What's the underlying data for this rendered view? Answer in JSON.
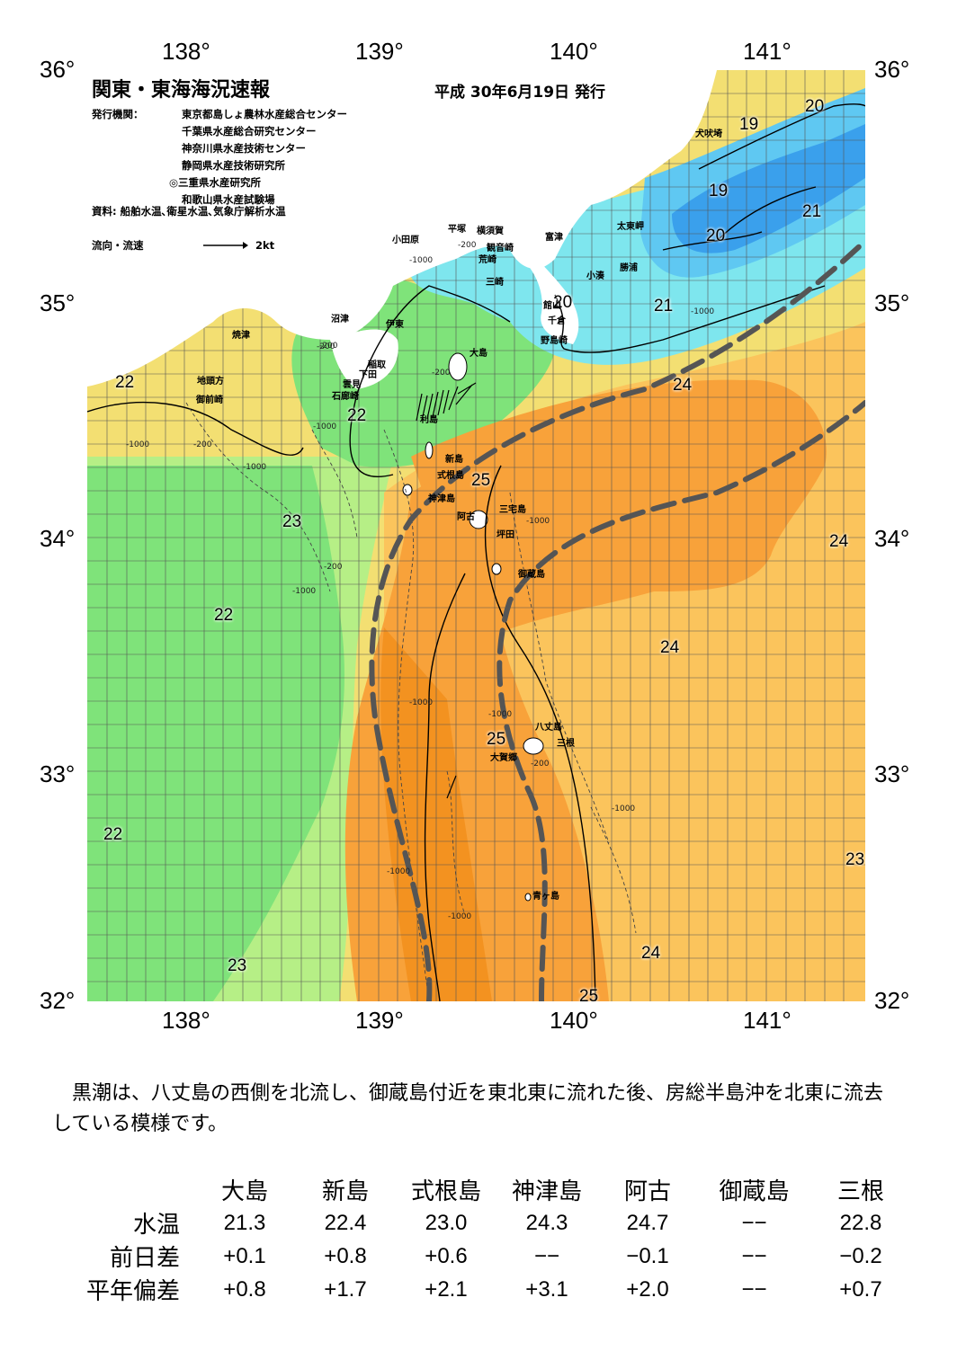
{
  "header": {
    "title": "関東・東海海況速報",
    "date": "平成 30年6月19日 発行",
    "issuer_label": "発行機関：",
    "issuers": [
      "東京都島しょ農林水産総合センター",
      "千葉県水産総合研究センター",
      "神奈川県水産技術センター",
      "静岡県水産技術研究所",
      "◎三重県水産研究所",
      "和歌山県水産試験場"
    ],
    "source": "資料: 船舶水温､衛星水温､気象庁解析水温",
    "flow_label": "流向・流速",
    "flow_scale": "2kt"
  },
  "axes": {
    "lon_top": [
      "138°",
      "139°",
      "140°",
      "141°"
    ],
    "lon_bottom": [
      "138°",
      "139°",
      "140°",
      "141°"
    ],
    "lat_left": [
      "36°",
      "35°",
      "34°",
      "33°",
      "32°"
    ],
    "lat_right": [
      "36°",
      "35°",
      "34°",
      "33°",
      "32°"
    ]
  },
  "places": {
    "inubo": "犬吠埼",
    "taito": "太東岬",
    "katsuura": "勝浦",
    "kominato": "小湊",
    "futtsu": "富津",
    "kannon": "観音崎",
    "yokosuka": "横須賀",
    "hiratsuka": "平塚",
    "odawara": "小田原",
    "arasaki": "荒崎",
    "misaki": "三崎",
    "tateyama": "館山",
    "chikura": "千倉",
    "nojima": "野島崎",
    "numazu": "沼津",
    "ito": "伊東",
    "inatori": "稲取",
    "shimoda": "下田",
    "kumomi": "雲見",
    "irozaki": "石廊崎",
    "yaizu": "焼津",
    "jitogata": "地頭方",
    "omaezaki": "御前崎",
    "oshima": "大島",
    "toshima": "利島",
    "niijima": "新島",
    "shikinejima": "式根島",
    "kozushima": "神津島",
    "miyakejima": "三宅島",
    "ako": "阿古",
    "tsubota": "坪田",
    "mikurajima": "御蔵島",
    "hachijojima": "八丈島",
    "mitsune": "三根",
    "okago": "大賀郷",
    "aogashima": "青ヶ島"
  },
  "isotherms": [
    "20",
    "19",
    "19",
    "20",
    "21",
    "21",
    "20",
    "22",
    "22",
    "24",
    "25",
    "23",
    "24",
    "22",
    "24",
    "25",
    "22",
    "23",
    "24",
    "25",
    "23"
  ],
  "depths": [
    "-200",
    "-1000",
    "-200",
    "-1000",
    "-200",
    "-1000",
    "-200",
    "-1000",
    "-1000",
    "-200",
    "-1000",
    "-1000",
    "-1000",
    "-200",
    "-1000",
    "-1000",
    "-1000",
    "-200",
    "-1000"
  ],
  "summary": "黒潮は、八丈島の西側を北流し、御蔵島付近を東北東に流れた後、房総半島沖を北東に流去している模様です。",
  "table": {
    "columns": [
      "大島",
      "新島",
      "式根島",
      "神津島",
      "阿古",
      "御蔵島",
      "三根"
    ],
    "rows": [
      {
        "label": "水温",
        "values": [
          "21.3",
          "22.4",
          "23.0",
          "24.3",
          "24.7",
          "−−",
          "22.8"
        ]
      },
      {
        "label": "前日差",
        "values": [
          "+0.1",
          "+0.8",
          "+0.6",
          "−−",
          "−0.1",
          "−−",
          "−0.2"
        ]
      },
      {
        "label": "平年偏差",
        "values": [
          "+0.8",
          "+1.7",
          "+2.1",
          "+3.1",
          "+2.0",
          "−−",
          "+0.7"
        ]
      }
    ]
  },
  "colors": {
    "t19": "#3aa0ec",
    "t20": "#5fc8f2",
    "t21": "#7ee6ee",
    "t22": "#7fe37a",
    "t23": "#b6ef86",
    "t24": "#f3df72",
    "t24b": "#fbc45c",
    "t25": "#f8a23a",
    "t25b": "#f39220",
    "land": "#ffffff",
    "kuroshio": "#555555"
  }
}
